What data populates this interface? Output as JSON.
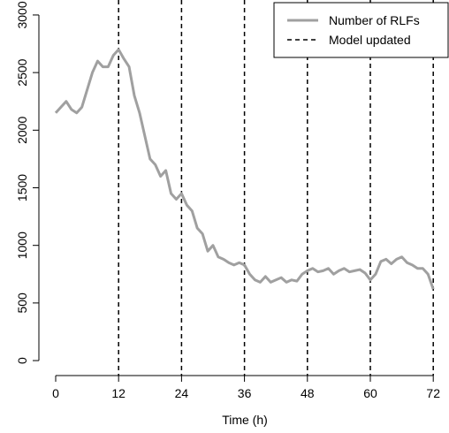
{
  "chart_data": {
    "type": "line",
    "xlabel": "Time (h)",
    "x": [
      0,
      1,
      2,
      3,
      4,
      5,
      6,
      7,
      8,
      9,
      10,
      11,
      12,
      13,
      14,
      15,
      16,
      17,
      18,
      19,
      20,
      21,
      22,
      23,
      24,
      25,
      26,
      27,
      28,
      29,
      30,
      31,
      32,
      33,
      34,
      35,
      36,
      37,
      38,
      39,
      40,
      41,
      42,
      43,
      44,
      45,
      46,
      47,
      48,
      49,
      50,
      51,
      52,
      53,
      54,
      55,
      56,
      57,
      58,
      59,
      60,
      61,
      62,
      63,
      64,
      65,
      66,
      67,
      68,
      69,
      70,
      71,
      72
    ],
    "series": [
      {
        "name": "Number of RLFs",
        "color": "#a0a0a0",
        "values": [
          2150,
          2200,
          2250,
          2180,
          2150,
          2200,
          2350,
          2500,
          2600,
          2550,
          2550,
          2650,
          2700,
          2620,
          2550,
          2300,
          2150,
          1950,
          1750,
          1700,
          1600,
          1650,
          1450,
          1400,
          1450,
          1350,
          1300,
          1150,
          1100,
          950,
          1000,
          900,
          880,
          850,
          830,
          850,
          830,
          750,
          700,
          680,
          730,
          680,
          700,
          720,
          680,
          700,
          690,
          750,
          780,
          800,
          770,
          780,
          800,
          750,
          780,
          800,
          770,
          780,
          790,
          760,
          700,
          750,
          860,
          880,
          840,
          880,
          900,
          850,
          830,
          800,
          800,
          750,
          620
        ]
      }
    ],
    "vlines": {
      "name": "Model updated",
      "color": "#000000",
      "x": [
        12,
        24,
        36,
        48,
        60,
        72
      ]
    },
    "xlim": [
      -3.2,
      75
    ],
    "ylim": [
      -130,
      3130
    ],
    "xticks": [
      0,
      12,
      24,
      36,
      48,
      60,
      72
    ],
    "yticks": [
      0,
      500,
      1000,
      1500,
      2000,
      2500,
      3000
    ],
    "legend": "top-right"
  }
}
